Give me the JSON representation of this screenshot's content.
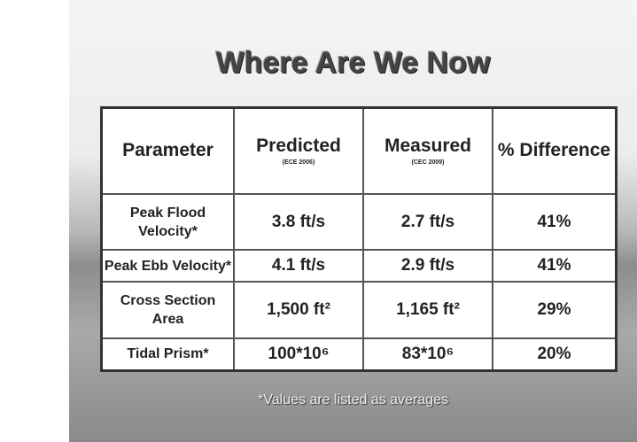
{
  "title": "Where Are We Now",
  "table": {
    "header": [
      {
        "text": "Parameter"
      },
      {
        "text": "Predicted",
        "source": "(ECE 2006)"
      },
      {
        "text": "Measured",
        "source": "(CEC 2009)"
      },
      {
        "text": "% Difference"
      }
    ],
    "rows": [
      [
        "Peak Flood Velocity*",
        "3.8 ft/s",
        "2.7 ft/s",
        "41%"
      ],
      [
        "Peak Ebb Velocity*",
        "4.1 ft/s",
        "2.9 ft/s",
        "41%"
      ],
      [
        "Cross Section Area",
        "1,500 ft²",
        "1,165 ft²",
        "29%"
      ],
      [
        "Tidal Prism*",
        "100*10⁶",
        "83*10⁶",
        "20%"
      ]
    ]
  },
  "footnote": "*Values are listed as averages"
}
